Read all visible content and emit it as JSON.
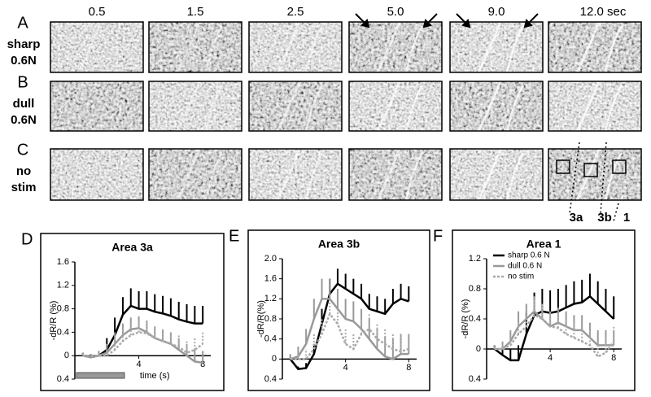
{
  "image_panels": {
    "times": [
      "0.5",
      "1.5",
      "2.5",
      "5.0",
      "9.0",
      "12.0 sec"
    ],
    "rows": [
      {
        "letter": "A",
        "label": [
          "sharp",
          "0.6N"
        ]
      },
      {
        "letter": "B",
        "label": [
          "dull",
          "0.6N"
        ]
      },
      {
        "letter": "C",
        "label": [
          "no",
          "stim"
        ]
      }
    ],
    "area_labels": [
      "3a",
      "3b",
      "1"
    ]
  },
  "chart_data": [
    {
      "type": "line",
      "panel": "D",
      "title": "Area 3a",
      "ylabel": "-dR/R (%)",
      "xlabel": "time (s)",
      "x": [
        0.5,
        1,
        1.5,
        2,
        2.5,
        3,
        3.5,
        4,
        4.5,
        5,
        5.5,
        6,
        6.5,
        7,
        7.5,
        8
      ],
      "xlim": [
        0,
        8.5
      ],
      "xticks": [
        4,
        8
      ],
      "ylim": [
        -0.4,
        1.6
      ],
      "yticks": [
        1.6,
        1.2,
        0.8,
        0.4,
        0,
        {
          "value": -0.4,
          "label": "0.4"
        }
      ],
      "series": [
        {
          "name": "sharp 0.6 N",
          "color": "#000000",
          "style": "solid",
          "values": [
            0,
            -0.02,
            0,
            0.1,
            0.35,
            0.7,
            0.85,
            0.8,
            0.8,
            0.75,
            0.72,
            0.68,
            0.62,
            0.58,
            0.55,
            0.55
          ],
          "errors": [
            0.05,
            0.05,
            0.08,
            0.2,
            0.3,
            0.3,
            0.3,
            0.3,
            0.3,
            0.3,
            0.3,
            0.3,
            0.3,
            0.3,
            0.3,
            0.3
          ]
        },
        {
          "name": "dull 0.6 N",
          "color": "#999999",
          "style": "solid",
          "values": [
            0,
            -0.03,
            0,
            0.05,
            0.2,
            0.35,
            0.45,
            0.47,
            0.4,
            0.3,
            0.25,
            0.2,
            0.1,
            0,
            -0.1,
            -0.12
          ],
          "errors": [
            0.05,
            0.05,
            0.08,
            0.15,
            0.2,
            0.2,
            0.2,
            0.2,
            0.2,
            0.2,
            0.2,
            0.2,
            0.2,
            0.2,
            0.2,
            0.2
          ]
        },
        {
          "name": "no stim",
          "color": "#aaaaaa",
          "style": "dotted",
          "values": [
            0,
            0,
            0,
            0,
            0.1,
            0.25,
            0.35,
            0.4,
            0.38,
            0.3,
            0.25,
            0.2,
            0.15,
            0.05,
            0.1,
            0.2
          ],
          "errors": [
            0.05,
            0.05,
            0.05,
            0.1,
            0.2,
            0.2,
            0.2,
            0.2,
            0.2,
            0.2,
            0.2,
            0.2,
            0.2,
            0.2,
            0.2,
            0.2
          ]
        }
      ]
    },
    {
      "type": "line",
      "panel": "E",
      "title": "Area 3b",
      "ylabel": "-dR/R(%)",
      "x": [
        0.5,
        1,
        1.5,
        2,
        2.5,
        3,
        3.5,
        4,
        4.5,
        5,
        5.5,
        6,
        6.5,
        7,
        7.5,
        8
      ],
      "xlim": [
        0,
        8.5
      ],
      "xticks": [
        4,
        8
      ],
      "ylim": [
        -0.4,
        2.0
      ],
      "yticks": [
        {
          "value": 2.0,
          "label": "2.0"
        },
        1.6,
        1.2,
        0.8,
        0.4,
        0,
        {
          "value": -0.4,
          "label": "0.4"
        }
      ],
      "series": [
        {
          "name": "sharp 0.6 N",
          "color": "#000000",
          "style": "solid",
          "values": [
            0,
            -0.2,
            -0.18,
            0.1,
            0.7,
            1.3,
            1.5,
            1.4,
            1.3,
            1.2,
            1.0,
            0.95,
            0.9,
            1.1,
            1.2,
            1.15
          ],
          "errors": [
            0.05,
            0.05,
            0.1,
            0.2,
            0.3,
            0.3,
            0.3,
            0.3,
            0.3,
            0.3,
            0.3,
            0.3,
            0.3,
            0.3,
            0.3,
            0.3
          ]
        },
        {
          "name": "dull 0.6 N",
          "color": "#999999",
          "style": "solid",
          "values": [
            0,
            0.05,
            0.3,
            0.8,
            1.2,
            1.2,
            1.0,
            0.8,
            0.75,
            0.6,
            0.4,
            0.2,
            0.05,
            0,
            0.1,
            0.1
          ],
          "errors": [
            0.1,
            0.2,
            0.3,
            0.4,
            0.4,
            0.4,
            0.4,
            0.4,
            0.4,
            0.4,
            0.4,
            0.4,
            0.4,
            0.4,
            0.4,
            0.4
          ]
        },
        {
          "name": "no stim",
          "color": "#aaaaaa",
          "style": "dotted",
          "values": [
            0,
            0,
            0,
            0.2,
            0.5,
            0.9,
            0.7,
            0.3,
            0.2,
            0.5,
            0.6,
            0.4,
            0.3,
            0.2,
            0.15,
            0.2
          ],
          "errors": [
            0.05,
            0.1,
            0.2,
            0.3,
            0.3,
            0.3,
            0.3,
            0.3,
            0.3,
            0.3,
            0.3,
            0.3,
            0.3,
            0.3,
            0.3,
            0.3
          ]
        }
      ]
    },
    {
      "type": "line",
      "panel": "F",
      "title": "Area 1",
      "ylabel": "-dR/R (%)",
      "legend": "upper left",
      "x": [
        0.5,
        1,
        1.5,
        2,
        2.5,
        3,
        3.5,
        4,
        4.5,
        5,
        5.5,
        6,
        6.5,
        7,
        7.5,
        8
      ],
      "xlim": [
        0,
        8.5
      ],
      "xticks": [
        4,
        8
      ],
      "ylim": [
        -0.4,
        1.2
      ],
      "yticks": [
        1.2,
        0.8,
        0.4,
        0,
        {
          "value": -0.4,
          "label": "0.4"
        }
      ],
      "series": [
        {
          "name": "sharp 0.6 N",
          "color": "#000000",
          "style": "solid",
          "values": [
            0,
            -0.08,
            -0.15,
            -0.15,
            0.2,
            0.45,
            0.5,
            0.48,
            0.5,
            0.55,
            0.6,
            0.62,
            0.7,
            0.6,
            0.5,
            0.4
          ],
          "errors": [
            0.05,
            0.1,
            0.15,
            0.2,
            0.3,
            0.3,
            0.3,
            0.3,
            0.3,
            0.3,
            0.3,
            0.3,
            0.3,
            0.3,
            0.3,
            0.3
          ]
        },
        {
          "name": "dull 0.6 N",
          "color": "#999999",
          "style": "solid",
          "values": [
            0,
            0,
            0.1,
            0.3,
            0.4,
            0.5,
            0.4,
            0.3,
            0.35,
            0.3,
            0.25,
            0.25,
            0.15,
            0.05,
            0.05,
            0.05
          ],
          "errors": [
            0.05,
            0.1,
            0.15,
            0.2,
            0.2,
            0.2,
            0.2,
            0.2,
            0.2,
            0.2,
            0.2,
            0.2,
            0.2,
            0.2,
            0.2,
            0.2
          ]
        },
        {
          "name": "no stim",
          "color": "#aaaaaa",
          "style": "dotted",
          "values": [
            0,
            0,
            0.05,
            0.2,
            0.3,
            0.45,
            0.4,
            0.3,
            0.28,
            0.2,
            0.15,
            0.1,
            0.05,
            -0.1,
            -0.05,
            0.1
          ],
          "errors": [
            0.05,
            0.05,
            0.1,
            0.15,
            0.2,
            0.2,
            0.2,
            0.2,
            0.2,
            0.2,
            0.2,
            0.2,
            0.2,
            0.2,
            0.2,
            0.2
          ]
        }
      ]
    }
  ]
}
